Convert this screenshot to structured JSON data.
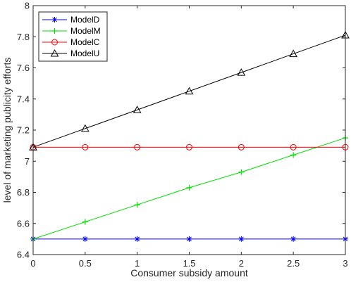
{
  "chart_data": {
    "type": "line",
    "title": "",
    "xlabel": "Consumer subsidy amount",
    "ylabel": "level of marketing publicity efforts",
    "xlim": [
      0,
      3
    ],
    "ylim": [
      6.4,
      8
    ],
    "xticks": [
      0,
      0.5,
      1,
      1.5,
      2,
      2.5,
      3
    ],
    "xtick_labels": [
      "0",
      "0.5",
      "1",
      "1.5",
      "2",
      "2.5",
      "3"
    ],
    "yticks": [
      6.4,
      6.6,
      6.8,
      7,
      7.2,
      7.4,
      7.6,
      7.8,
      8
    ],
    "ytick_labels": [
      "6.4",
      "6.6",
      "6.8",
      "7",
      "7.2",
      "7.4",
      "7.6",
      "7.8",
      "8"
    ],
    "grid": false,
    "legend_position": "top-left",
    "x": [
      0,
      0.5,
      1,
      1.5,
      2,
      2.5,
      3
    ],
    "series": [
      {
        "name": "ModelD",
        "color": "#0000ff",
        "marker": "asterisk",
        "values": [
          6.5,
          6.5,
          6.5,
          6.5,
          6.5,
          6.5,
          6.5
        ]
      },
      {
        "name": "ModelM",
        "color": "#00dd00",
        "marker": "plus",
        "values": [
          6.5,
          6.61,
          6.72,
          6.83,
          6.93,
          7.04,
          7.15
        ]
      },
      {
        "name": "ModelC",
        "color": "#ff0000",
        "marker": "circle",
        "values": [
          7.09,
          7.09,
          7.09,
          7.09,
          7.09,
          7.09,
          7.09
        ]
      },
      {
        "name": "ModelU",
        "color": "#000000",
        "marker": "triangle",
        "values": [
          7.09,
          7.21,
          7.33,
          7.45,
          7.57,
          7.69,
          7.81
        ]
      }
    ]
  }
}
